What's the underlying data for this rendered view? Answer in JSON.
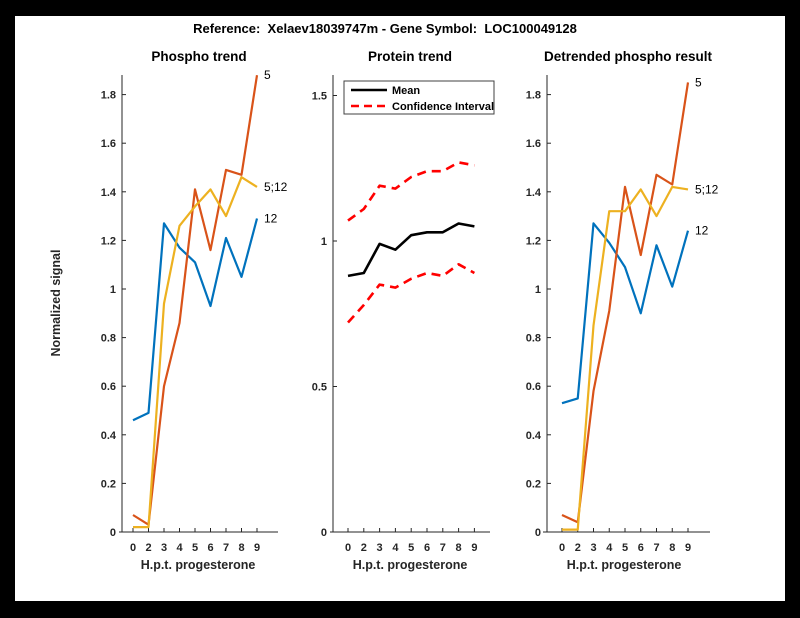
{
  "figure_title": "Reference:  Xelaev18039747m - Gene Symbol:  LOC100049128",
  "colors": {
    "blue": "#0072BD",
    "orange": "#D95319",
    "yellow": "#EDB120",
    "ci_red": "#FF0000",
    "mean_black": "#000000",
    "axis": "#262626",
    "frame": "#000000",
    "background": "#FFFFFF"
  },
  "chart_data": [
    {
      "id": "phospho-trend",
      "type": "line",
      "title": "Phospho trend",
      "xlabel": "H.p.t. progesterone",
      "ylabel": "Normalized signal",
      "x_ticklabels": [
        "0",
        "2",
        "3",
        "4",
        "5",
        "6",
        "7",
        "8",
        "9"
      ],
      "y_ticks": [
        0,
        0.2,
        0.4,
        0.6,
        0.8,
        1,
        1.2,
        1.4,
        1.6,
        1.8
      ],
      "y_ticklabels": [
        "0",
        "0.2",
        "0.4",
        "0.6",
        "0.8",
        "1",
        "1.2",
        "1.4",
        "1.6",
        "1.8"
      ],
      "ylim": [
        0,
        1.9
      ],
      "grid": false,
      "legend_position": "none",
      "series": [
        {
          "name": "5",
          "color_key": "orange",
          "end_label": "5",
          "values": [
            0.07,
            0.03,
            0.6,
            0.86,
            1.41,
            1.16,
            1.49,
            1.47,
            1.88
          ]
        },
        {
          "name": "5;12",
          "color_key": "yellow",
          "end_label": "5;12",
          "values": [
            0.02,
            0.02,
            0.94,
            1.26,
            1.34,
            1.41,
            1.3,
            1.46,
            1.42
          ]
        },
        {
          "name": "12",
          "color_key": "blue",
          "end_label": "12",
          "values": [
            0.46,
            0.49,
            1.27,
            1.17,
            1.11,
            0.93,
            1.21,
            1.05,
            1.29
          ]
        }
      ]
    },
    {
      "id": "protein-trend",
      "type": "line",
      "title": "Protein trend",
      "xlabel": "H.p.t. progesterone",
      "ylabel": "",
      "x_ticklabels": [
        "0",
        "2",
        "3",
        "4",
        "5",
        "6",
        "7",
        "8",
        "9"
      ],
      "y_ticks": [
        0,
        0.5,
        1,
        1.5
      ],
      "y_ticklabels": [
        "0",
        "0.5",
        "1",
        "1.5"
      ],
      "ylim": [
        0,
        1.57
      ],
      "grid": false,
      "legend_position": "top-left",
      "legend": [
        {
          "label": "Mean",
          "style": "solid",
          "color_key": "mean_black"
        },
        {
          "label": "Confidence Interval",
          "style": "dashed",
          "color_key": "ci_red"
        }
      ],
      "series": [
        {
          "name": "Mean",
          "color_key": "mean_black",
          "values": [
            0.88,
            0.89,
            0.99,
            0.97,
            1.02,
            1.03,
            1.03,
            1.06,
            1.05
          ]
        },
        {
          "name": "Confidence Interval upper",
          "color_key": "ci_red",
          "dashed": true,
          "values": [
            1.07,
            1.11,
            1.19,
            1.18,
            1.22,
            1.24,
            1.24,
            1.27,
            1.26
          ]
        },
        {
          "name": "Confidence Interval lower",
          "color_key": "ci_red",
          "dashed": true,
          "values": [
            0.72,
            0.78,
            0.85,
            0.84,
            0.87,
            0.89,
            0.88,
            0.92,
            0.89
          ]
        }
      ]
    },
    {
      "id": "detrended-phospho-result",
      "type": "line",
      "title": "Detrended phospho result",
      "xlabel": "H.p.t. progesterone",
      "ylabel": "",
      "x_ticklabels": [
        "0",
        "2",
        "3",
        "4",
        "5",
        "6",
        "7",
        "8",
        "9"
      ],
      "y_ticks": [
        0,
        0.2,
        0.4,
        0.6,
        0.8,
        1,
        1.2,
        1.4,
        1.6,
        1.8
      ],
      "y_ticklabels": [
        "0",
        "0.2",
        "0.4",
        "0.6",
        "0.8",
        "1",
        "1.2",
        "1.4",
        "1.6",
        "1.8"
      ],
      "ylim": [
        0,
        1.9
      ],
      "grid": false,
      "legend_position": "none",
      "series": [
        {
          "name": "5",
          "color_key": "orange",
          "end_label": "5",
          "values": [
            0.07,
            0.04,
            0.58,
            0.91,
            1.42,
            1.14,
            1.47,
            1.43,
            1.85
          ]
        },
        {
          "name": "5;12",
          "color_key": "yellow",
          "end_label": "5;12",
          "values": [
            0.01,
            0.01,
            0.85,
            1.32,
            1.32,
            1.41,
            1.3,
            1.42,
            1.41
          ]
        },
        {
          "name": "12",
          "color_key": "blue",
          "end_label": "12",
          "values": [
            0.53,
            0.55,
            1.27,
            1.19,
            1.09,
            0.9,
            1.18,
            1.01,
            1.24
          ]
        }
      ]
    }
  ]
}
